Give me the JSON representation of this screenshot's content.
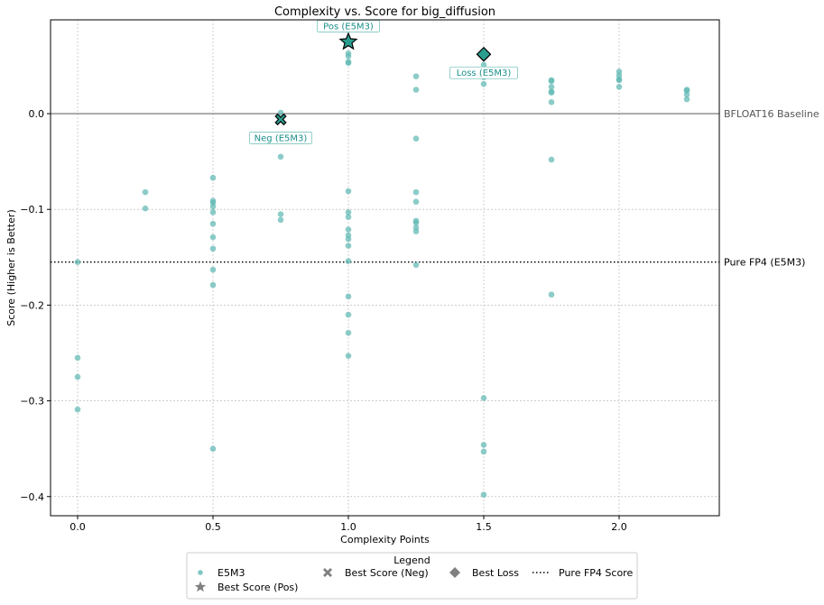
{
  "chart_data": {
    "type": "scatter",
    "title": "Complexity vs. Score for big_diffusion",
    "xlabel": "Complexity Points",
    "ylabel": "Score (Higher is Better)",
    "xlim": [
      -0.1,
      2.37
    ],
    "ylim": [
      -0.42,
      0.098
    ],
    "xticks": [
      0.0,
      0.5,
      1.0,
      1.5,
      2.0
    ],
    "xtick_labels": [
      "0.0",
      "0.5",
      "1.0",
      "1.5",
      "2.0"
    ],
    "yticks": [
      0.0,
      -0.1,
      -0.2,
      -0.3,
      -0.4
    ],
    "ytick_labels": [
      "0.0",
      "−0.1",
      "−0.2",
      "−0.3",
      "−0.4"
    ],
    "grid": true,
    "series": [
      {
        "name": "E5M3",
        "color": "#5fb8b3",
        "points": [
          [
            0.0,
            -0.155
          ],
          [
            0.0,
            -0.255
          ],
          [
            0.0,
            -0.275
          ],
          [
            0.0,
            -0.309
          ],
          [
            0.25,
            -0.082
          ],
          [
            0.25,
            -0.099
          ],
          [
            0.5,
            -0.067
          ],
          [
            0.5,
            -0.091
          ],
          [
            0.5,
            -0.093
          ],
          [
            0.5,
            -0.097
          ],
          [
            0.5,
            -0.103
          ],
          [
            0.5,
            -0.115
          ],
          [
            0.5,
            -0.129
          ],
          [
            0.5,
            -0.141
          ],
          [
            0.5,
            -0.163
          ],
          [
            0.5,
            -0.179
          ],
          [
            0.5,
            -0.35
          ],
          [
            0.75,
            0.001
          ],
          [
            0.75,
            -0.045
          ],
          [
            0.75,
            -0.105
          ],
          [
            0.75,
            -0.111
          ],
          [
            1.0,
            0.063
          ],
          [
            1.0,
            0.06
          ],
          [
            1.0,
            0.054
          ],
          [
            1.0,
            0.053
          ],
          [
            1.0,
            -0.081
          ],
          [
            1.0,
            -0.103
          ],
          [
            1.0,
            -0.108
          ],
          [
            1.0,
            -0.121
          ],
          [
            1.0,
            -0.127
          ],
          [
            1.0,
            -0.131
          ],
          [
            1.0,
            -0.138
          ],
          [
            1.0,
            -0.154
          ],
          [
            1.0,
            -0.191
          ],
          [
            1.0,
            -0.21
          ],
          [
            1.0,
            -0.229
          ],
          [
            1.0,
            -0.253
          ],
          [
            1.25,
            0.039
          ],
          [
            1.25,
            0.025
          ],
          [
            1.25,
            -0.026
          ],
          [
            1.25,
            -0.082
          ],
          [
            1.25,
            -0.092
          ],
          [
            1.25,
            -0.112
          ],
          [
            1.25,
            -0.114
          ],
          [
            1.25,
            -0.119
          ],
          [
            1.25,
            -0.123
          ],
          [
            1.25,
            -0.158
          ],
          [
            1.5,
            0.051
          ],
          [
            1.5,
            0.038
          ],
          [
            1.5,
            0.031
          ],
          [
            1.5,
            -0.297
          ],
          [
            1.5,
            -0.346
          ],
          [
            1.5,
            -0.353
          ],
          [
            1.5,
            -0.398
          ],
          [
            1.75,
            0.035
          ],
          [
            1.75,
            0.034
          ],
          [
            1.75,
            0.028
          ],
          [
            1.75,
            0.023
          ],
          [
            1.75,
            0.022
          ],
          [
            1.75,
            0.012
          ],
          [
            1.75,
            -0.048
          ],
          [
            1.75,
            -0.189
          ],
          [
            2.0,
            0.044
          ],
          [
            2.0,
            0.04
          ],
          [
            2.0,
            0.036
          ],
          [
            2.0,
            0.035
          ],
          [
            2.0,
            0.028
          ],
          [
            2.25,
            0.025
          ],
          [
            2.25,
            0.024
          ],
          [
            2.25,
            0.02
          ],
          [
            2.25,
            0.015
          ]
        ]
      }
    ],
    "highlights": [
      {
        "name": "Best Score (Pos)",
        "marker": "star",
        "x": 1.0,
        "y": 0.075,
        "annotation": "Pos (E5M3)",
        "annotation_position": "above"
      },
      {
        "name": "Best Score (Neg)",
        "marker": "x",
        "x": 0.75,
        "y": -0.006,
        "annotation": "Neg (E5M3)",
        "annotation_position": "below"
      },
      {
        "name": "Best Loss",
        "marker": "diamond",
        "x": 1.5,
        "y": 0.062,
        "annotation": "Loss (E5M3)",
        "annotation_position": "below"
      }
    ],
    "reference_lines": [
      {
        "name": "BFLOAT16 Baseline",
        "y": 0.0,
        "style": "solid",
        "color": "#999999",
        "label": "BFLOAT16 Baseline"
      },
      {
        "name": "Pure FP4 (E5M3)",
        "y": -0.155,
        "style": "dotted",
        "color": "#000000",
        "label": "Pure FP4 (E5M3)"
      }
    ],
    "legend": {
      "title": "Legend",
      "placement": "bottom-center",
      "entries": [
        {
          "label": "E5M3",
          "marker": "dot"
        },
        {
          "label": "Best Score (Neg)",
          "marker": "x"
        },
        {
          "label": "Best Loss",
          "marker": "diamond"
        },
        {
          "label": "Pure FP4 Score",
          "marker": "dotted-line"
        },
        {
          "label": "Best Score (Pos)",
          "marker": "star"
        }
      ]
    },
    "colors": {
      "point": "#5fb8b3",
      "highlight_fill": "#2a9d8f",
      "legend_marker": "#808080",
      "annotation": "#1a8f8a"
    }
  }
}
